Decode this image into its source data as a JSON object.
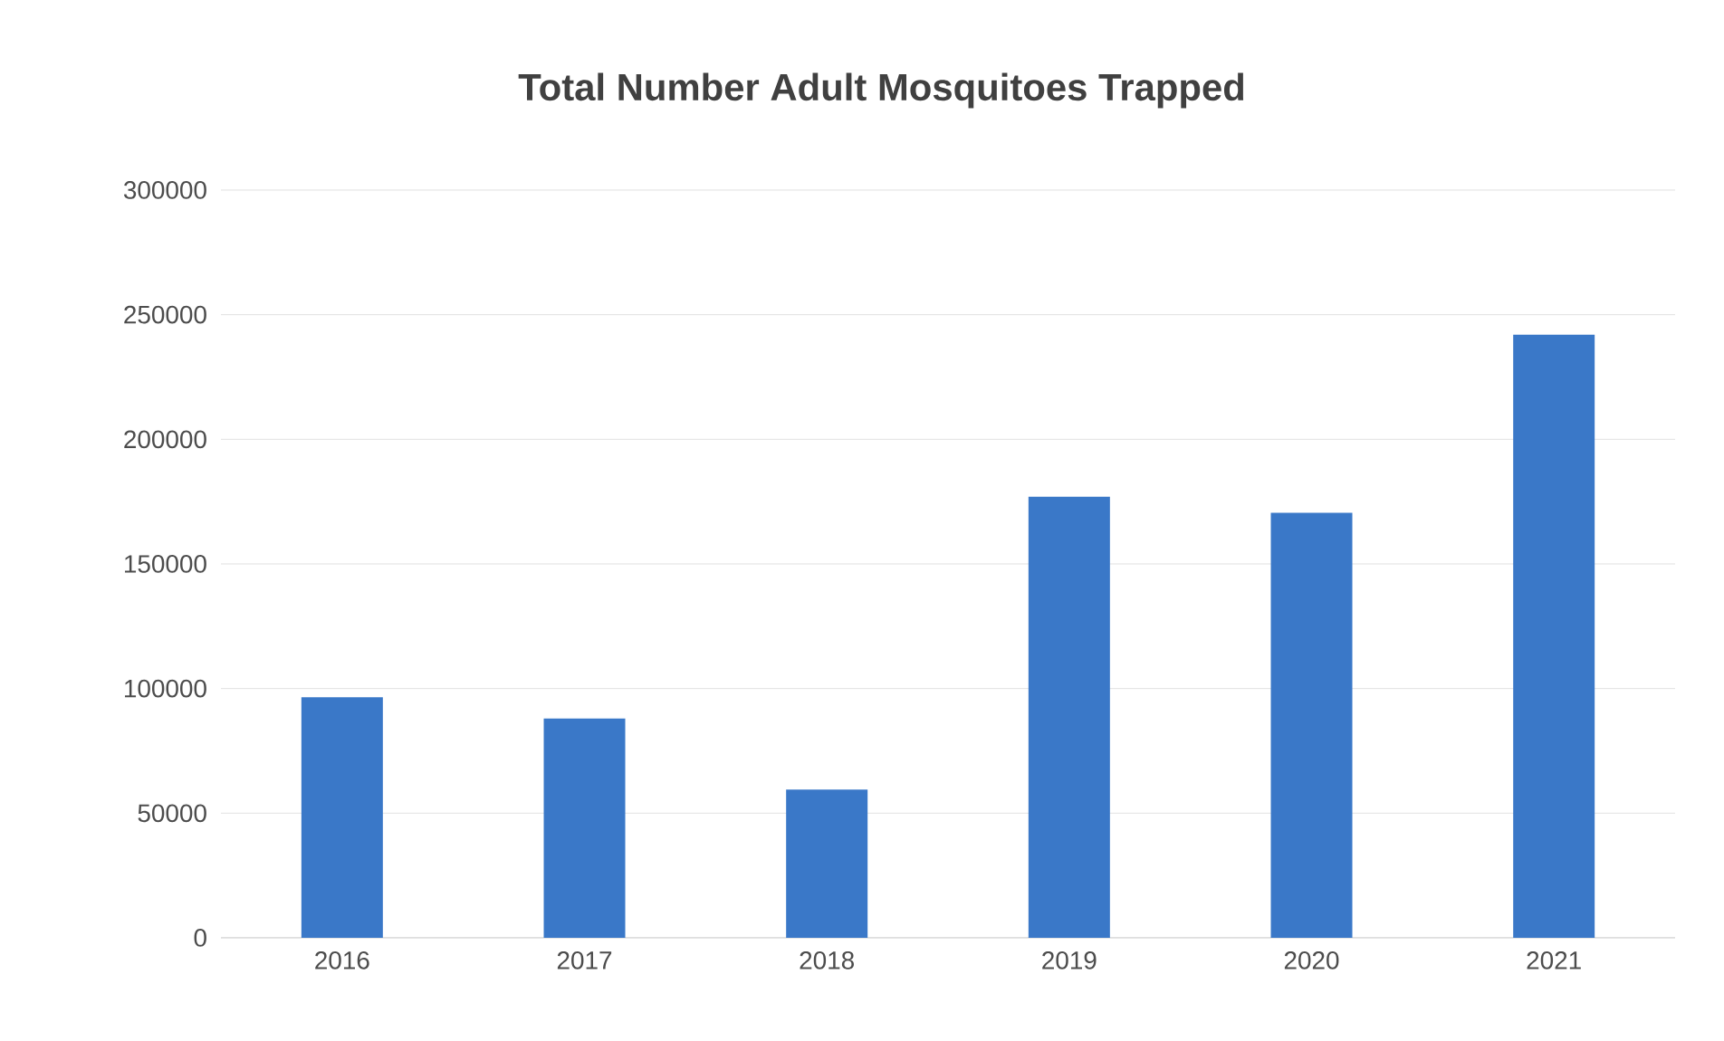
{
  "chart_data": {
    "type": "bar",
    "title": "Total Number Adult Mosquitoes Trapped",
    "categories": [
      "2016",
      "2017",
      "2018",
      "2019",
      "2020",
      "2021"
    ],
    "values": [
      96500,
      88000,
      59500,
      177000,
      170500,
      242000
    ],
    "color": "#3a78c8",
    "ylim": [
      0,
      300000
    ],
    "yticks": [
      0,
      50000,
      100000,
      150000,
      200000,
      250000,
      300000
    ],
    "grid": "y"
  }
}
